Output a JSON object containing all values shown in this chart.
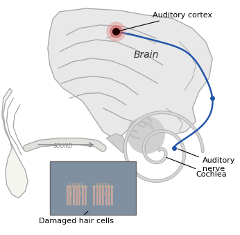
{
  "title": "",
  "bg_color": "#ffffff",
  "labels": {
    "auditory_cortex": "Auditory cortex",
    "brain": "Brain",
    "auditory_nerve": "Auditory\nnerve",
    "cochlea": "Cochlea",
    "damaged_hair_cells": "Damaged hair cells",
    "sound": "SOUND"
  },
  "annotation_color": "#000000",
  "nerve_path_color": "#2255aa",
  "brain_fill": "#e8e8e8",
  "ear_fill": "#e8e8e8",
  "cochlea_fill": "#d0d0d0",
  "hair_cell_bg": "#7a8a9a",
  "cortex_spot_color": "#cc6666",
  "label_fontsize": 8,
  "brain_fontsize": 10
}
